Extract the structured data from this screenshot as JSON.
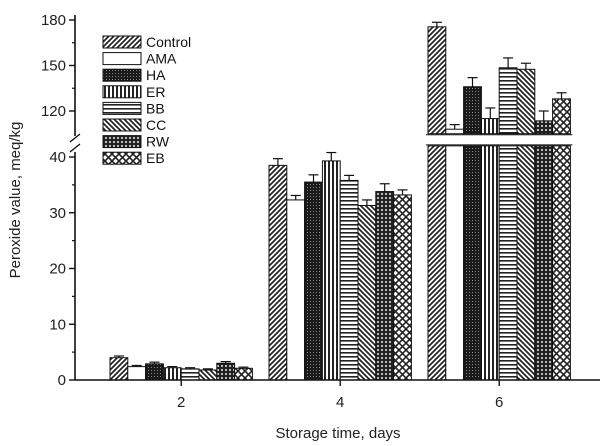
{
  "chart_data": {
    "type": "bar",
    "categories": [
      "2",
      "4",
      "6"
    ],
    "xlabel": "Storage time, days",
    "ylabel": "Peroxide value, meq/kg",
    "axis_break": {
      "lower_range": [
        0,
        42
      ],
      "upper_range": [
        105,
        182
      ]
    },
    "y_ticks_lower": [
      "0",
      "10",
      "20",
      "30",
      "40"
    ],
    "y_ticks_upper": [
      "120",
      "150",
      "180"
    ],
    "legend_position": "top-left",
    "grid": false,
    "series": [
      {
        "name": "Control",
        "pattern": "diag-right",
        "values": [
          4.0,
          38.5,
          175.5
        ],
        "errors": [
          0.3,
          1.2,
          3.0
        ]
      },
      {
        "name": "AMA",
        "pattern": "white",
        "values": [
          2.4,
          32.3,
          108.0
        ],
        "errors": [
          0.2,
          0.8,
          3.0
        ]
      },
      {
        "name": "HA",
        "pattern": "dots",
        "values": [
          2.9,
          35.5,
          136.0
        ],
        "errors": [
          0.3,
          1.3,
          6.0
        ]
      },
      {
        "name": "ER",
        "pattern": "vertical",
        "values": [
          2.2,
          39.3,
          115.0
        ],
        "errors": [
          0.2,
          1.5,
          7.0
        ]
      },
      {
        "name": "BB",
        "pattern": "horizontal",
        "values": [
          2.0,
          35.8,
          148.5
        ],
        "errors": [
          0.2,
          0.9,
          6.5
        ]
      },
      {
        "name": "CC",
        "pattern": "diag-left",
        "values": [
          1.8,
          31.3,
          147.5
        ],
        "errors": [
          0.2,
          1.0,
          4.0
        ]
      },
      {
        "name": "RW",
        "pattern": "grid",
        "values": [
          3.0,
          33.8,
          113.5
        ],
        "errors": [
          0.3,
          1.4,
          6.5
        ]
      },
      {
        "name": "EB",
        "pattern": "crosshatch",
        "values": [
          2.1,
          33.2,
          128.0
        ],
        "errors": [
          0.2,
          0.9,
          4.0
        ]
      }
    ]
  }
}
